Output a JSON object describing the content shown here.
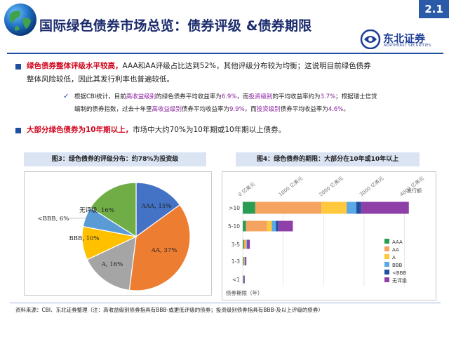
{
  "header": {
    "title": "国际绿色债券市场总览：债券评级 &债券期限",
    "page_number": "2.1",
    "logo_text": "东北证券",
    "logo_sub": "NORTHEAST SECURITIES",
    "colors": {
      "brand": "#1f4fa0",
      "accent_red": "#d0021b"
    }
  },
  "bullets": {
    "b1_highlight": "绿色债券整体评级水平较高，",
    "b1_text": "AAA和AA评级占比达到52%，其他评级分布较为均衡；这说明目前绿色债券",
    "b1_text2": "整体风险较低，因此其发行利率也普遍较低。",
    "sub_a": "根据CBI统计，目前",
    "sub_b": "高收益级别",
    "sub_c": "的绿色债券平均收益率为",
    "sub_d": "6.9%",
    "sub_e": "，而",
    "sub_f": "投资级别",
    "sub_g": "的平均收益率约为",
    "sub_h": "3.7%",
    "sub_i": "；根据瑞士信贷",
    "sub2_a": "编制的债券指数，过去十年里",
    "sub2_b": "高收益级别",
    "sub2_c": "债券平均收益率为",
    "sub2_d": "9.9%",
    "sub2_e": "，而",
    "sub2_f": "投资级别",
    "sub2_g": "债券平均收益率为",
    "sub2_h": "4.6%",
    "sub2_i": "。",
    "b2_highlight": "大部分绿色债券为10年期以上，",
    "b2_text": "市场中大约70%为10年期或10年期以上债券。"
  },
  "captions": {
    "fig3": "图3：绿色债券的评级分布：约78%为投资级",
    "fig4": "图4：绿色债券的期限：大部分在10年或10年以上"
  },
  "chart_data": [
    {
      "type": "pie",
      "title": "图3：绿色债券的评级分布：约78%为投资级",
      "labels": [
        "AAA, 15%",
        "AA, 37%",
        "A, 16%",
        "BBB, 10%",
        "<BBB, 6%",
        "无评级, 16%"
      ],
      "categories": [
        "AAA",
        "AA",
        "A",
        "BBB",
        "<BBB",
        "无评级"
      ],
      "values": [
        15,
        37,
        16,
        10,
        6,
        16
      ],
      "colors": [
        "#4472c4",
        "#ed7d31",
        "#a5a5a5",
        "#ffc000",
        "#5b9bd5",
        "#70ad47"
      ]
    },
    {
      "type": "bar",
      "orientation": "horizontal-stacked",
      "title": "图4：绿色债券的期限：大部分在10年或10年以上",
      "categories": [
        ">10",
        "5-10",
        "3-5",
        "1-3",
        "<1"
      ],
      "ylabel": "债券期限（年）",
      "x_ticks": [
        "0 亿美元",
        "1000 亿美元",
        "2000 亿美元",
        "3000 亿美元",
        "4000 亿美元"
      ],
      "x_unit_label": "发行额",
      "xlim": [
        0,
        4600
      ],
      "series": [
        {
          "name": "AAA",
          "color": "#2a9d55",
          "values": [
            310,
            80,
            30,
            20,
            10
          ]
        },
        {
          "name": "AA",
          "color": "#f4a460",
          "values": [
            1640,
            520,
            40,
            15,
            5
          ]
        },
        {
          "name": "A",
          "color": "#ffc83d",
          "values": [
            620,
            120,
            20,
            10,
            5
          ]
        },
        {
          "name": "BBB",
          "color": "#5aa9e6",
          "values": [
            240,
            100,
            15,
            10,
            5
          ]
        },
        {
          "name": "<BBB",
          "color": "#1f4fa0",
          "values": [
            120,
            60,
            10,
            5,
            5
          ]
        },
        {
          "name": "无评级",
          "color": "#8e3fa8",
          "values": [
            1180,
            360,
            60,
            30,
            20
          ]
        }
      ]
    }
  ],
  "source": "资料来源：CBI、东北证券整理（注：高收益级别债券指具有BBB-或更低评级的债券；投资级别债券指具有BBB-及以上评级的债券）"
}
